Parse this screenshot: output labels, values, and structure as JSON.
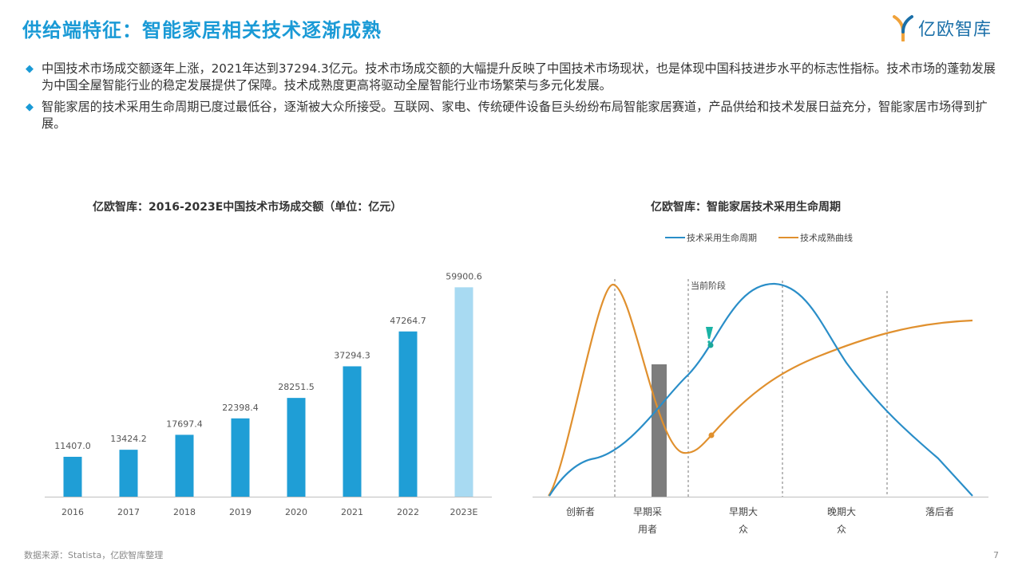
{
  "header": {
    "title": "供给端特征：智能家居相关技术逐渐成熟",
    "logo_text": "亿欧智库"
  },
  "colors": {
    "accent": "#1a9ad6",
    "bar": "#1f9ed6",
    "bar_forecast": "#a8daf2",
    "orange": "#e0902e",
    "blue_line": "#2a8ec8",
    "gray_bar": "#7d7d7d"
  },
  "bullets": [
    "中国技术市场成交额逐年上涨，2021年达到37294.3亿元。技术市场成交额的大幅提升反映了中国技术市场现状，也是体现中国科技进步水平的标志性指标。技术市场的蓬勃发展为中国全屋智能行业的稳定发展提供了保障。技术成熟度更高将驱动全屋智能行业市场繁荣与多元化发展。",
    "智能家居的技术采用生命周期已度过最低谷，逐渐被大众所接受。互联网、家电、传统硬件设备巨头纷纷布局智能家居赛道，产品供给和技术发展日益充分，智能家居市场得到扩展。"
  ],
  "chart_data": [
    {
      "type": "bar",
      "title": "亿欧智库：2016-2023E中国技术市场成交额（单位：亿元）",
      "categories": [
        "2016",
        "2017",
        "2018",
        "2019",
        "2020",
        "2021",
        "2022",
        "2023E"
      ],
      "values": [
        11407.0,
        13424.2,
        17697.4,
        22398.4,
        28251.5,
        37294.3,
        47264.7,
        59900.6
      ],
      "value_labels": [
        "11407.0",
        "13424.2",
        "17697.4",
        "22398.4",
        "28251.5",
        "37294.3",
        "47264.7",
        "59900.6"
      ],
      "forecast_index": 7,
      "ylim": [
        0,
        65000
      ]
    },
    {
      "type": "line",
      "title": "亿欧智库：智能家居技术采用生命周期",
      "legend": [
        "技术采用生命周期",
        "技术成熟曲线"
      ],
      "legend_position": "top",
      "stages": [
        "创新者",
        "早期采用者",
        "早期大众",
        "晚期大众",
        "落后者"
      ],
      "stage_labels": [
        [
          "创新者"
        ],
        [
          "早期采",
          "用者"
        ],
        [
          "早期大",
          "众"
        ],
        [
          "晚期大",
          "众"
        ],
        [
          "落后者"
        ]
      ],
      "annotation": "当前阶段"
    }
  ],
  "footer": {
    "source": "数据来源：Statista，亿欧智库整理",
    "page": "7"
  }
}
